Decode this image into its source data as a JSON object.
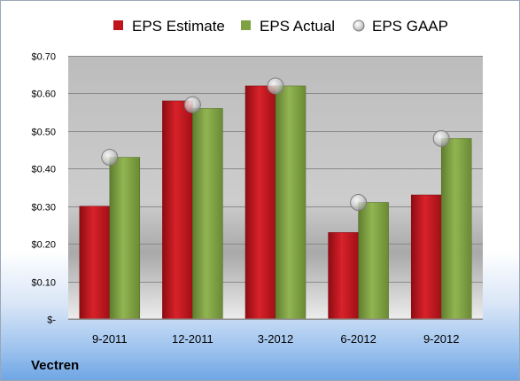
{
  "company": "Vectren",
  "colors": {
    "estimate": "#c0141c",
    "actual": "#7ea242",
    "gaap": "#c6c6c6"
  },
  "chart_data": {
    "type": "bar",
    "title": "",
    "xlabel": "",
    "ylabel": "",
    "categories": [
      "9-2011",
      "12-2011",
      "3-2012",
      "6-2012",
      "9-2012"
    ],
    "series": [
      {
        "name": "EPS Estimate",
        "type": "bar",
        "values": [
          0.3,
          0.58,
          0.62,
          0.23,
          0.33
        ]
      },
      {
        "name": "EPS Actual",
        "type": "bar",
        "values": [
          0.43,
          0.56,
          0.62,
          0.31,
          0.48
        ]
      },
      {
        "name": "EPS GAAP",
        "type": "scatter",
        "values": [
          0.43,
          0.57,
          0.62,
          0.31,
          0.48
        ]
      }
    ],
    "ylim": [
      0,
      0.7
    ],
    "yticks": [
      {
        "value": 0.0,
        "label": "$-"
      },
      {
        "value": 0.1,
        "label": "$0.10"
      },
      {
        "value": 0.2,
        "label": "$0.20"
      },
      {
        "value": 0.3,
        "label": "$0.30"
      },
      {
        "value": 0.4,
        "label": "$0.40"
      },
      {
        "value": 0.5,
        "label": "$0.50"
      },
      {
        "value": 0.6,
        "label": "$0.60"
      },
      {
        "value": 0.7,
        "label": "$0.70"
      }
    ],
    "grid": true,
    "legend_position": "top"
  }
}
